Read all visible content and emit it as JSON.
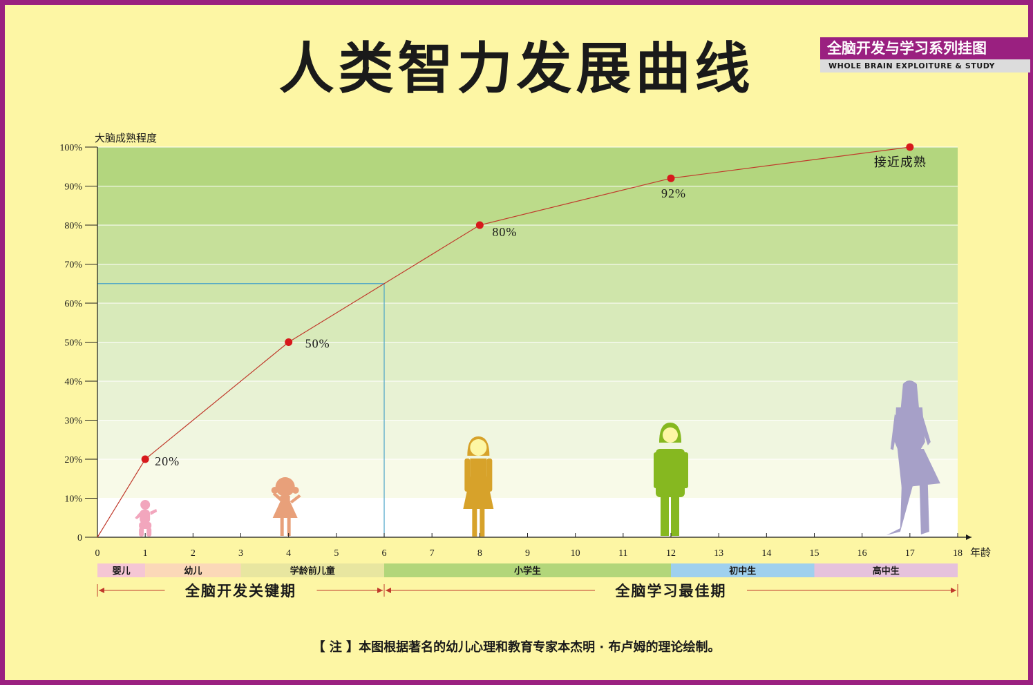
{
  "page": {
    "title": "人类智力发展曲线",
    "series_badge": {
      "title": "全脑开发与学习系列挂图",
      "subtitle": "WHOLE BRAIN EXPLOITURE & STUDY"
    },
    "note": "【 注 】本图根据著名的幼儿心理和教育专家本杰明 · 布卢姆的理论绘制。"
  },
  "colors": {
    "border": "#9a2080",
    "background": "#fdf6a4",
    "curve": "#c0392b",
    "point": "#d7191c",
    "guide": "#4aa3c8"
  },
  "chart_data": {
    "type": "line",
    "ylabel": "大脑成熟程度",
    "xlabel": "年龄",
    "xlim": [
      0,
      18
    ],
    "ylim": [
      0,
      100
    ],
    "x_ticks": [
      0,
      1,
      2,
      3,
      4,
      5,
      6,
      7,
      8,
      9,
      10,
      11,
      12,
      13,
      14,
      15,
      16,
      17,
      18
    ],
    "y_ticks": [
      "0",
      "10%",
      "20%",
      "30%",
      "40%",
      "50%",
      "60%",
      "70%",
      "80%",
      "90%",
      "100%"
    ],
    "series": [
      {
        "x": [
          0,
          1,
          4,
          8,
          12,
          17
        ],
        "y": [
          0,
          20,
          50,
          80,
          92,
          100
        ]
      }
    ],
    "point_labels": [
      {
        "x": 1,
        "y": 20,
        "text": "20%"
      },
      {
        "x": 4,
        "y": 50,
        "text": "50%"
      },
      {
        "x": 8,
        "y": 80,
        "text": "80%"
      },
      {
        "x": 12,
        "y": 92,
        "text": "92%"
      },
      {
        "x": 17,
        "y": 100,
        "text": "接近成熟"
      }
    ],
    "guide_box": {
      "x": 6,
      "y": 65
    },
    "background_bands": [
      {
        "from": 90,
        "to": 100,
        "color": "#b3d67e"
      },
      {
        "from": 80,
        "to": 90,
        "color": "#bcdb8a"
      },
      {
        "from": 70,
        "to": 80,
        "color": "#c6e09a"
      },
      {
        "from": 60,
        "to": 70,
        "color": "#cfe5aa"
      },
      {
        "from": 50,
        "to": 60,
        "color": "#d8eaba"
      },
      {
        "from": 40,
        "to": 50,
        "color": "#e0eec8"
      },
      {
        "from": 30,
        "to": 40,
        "color": "#e8f2d4"
      },
      {
        "from": 20,
        "to": 30,
        "color": "#f0f6e0"
      },
      {
        "from": 10,
        "to": 20,
        "color": "#f8fae8"
      },
      {
        "from": 0,
        "to": 10,
        "color": "#ffffff"
      }
    ],
    "stages": [
      {
        "label": "婴儿",
        "from": 0,
        "to": 1,
        "color": "#f5c6d4"
      },
      {
        "label": "幼儿",
        "from": 1,
        "to": 3,
        "color": "#fbd8b8"
      },
      {
        "label": "学龄前儿童",
        "from": 3,
        "to": 6,
        "color": "#e8e6a0"
      },
      {
        "label": "小学生",
        "from": 6,
        "to": 12,
        "color": "#b2d67a"
      },
      {
        "label": "初中生",
        "from": 12,
        "to": 15,
        "color": "#9fd0ee"
      },
      {
        "label": "高中生",
        "from": 15,
        "to": 18,
        "color": "#e6c2dc"
      }
    ],
    "periods": [
      {
        "label": "全脑开发关键期",
        "from": 0,
        "to": 6
      },
      {
        "label": "全脑学习最佳期",
        "from": 6,
        "to": 18
      }
    ],
    "figures": [
      {
        "x": 1,
        "icon": "baby-icon",
        "color": "#f2a6bd"
      },
      {
        "x": 4,
        "icon": "toddler-girl-icon",
        "color": "#e8a07a"
      },
      {
        "x": 8,
        "icon": "schoolgirl-icon",
        "color": "#d7a22a"
      },
      {
        "x": 12,
        "icon": "teen-boy-icon",
        "color": "#86b820"
      },
      {
        "x": 17,
        "icon": "young-woman-icon",
        "color": "#a6a0c8"
      }
    ]
  }
}
